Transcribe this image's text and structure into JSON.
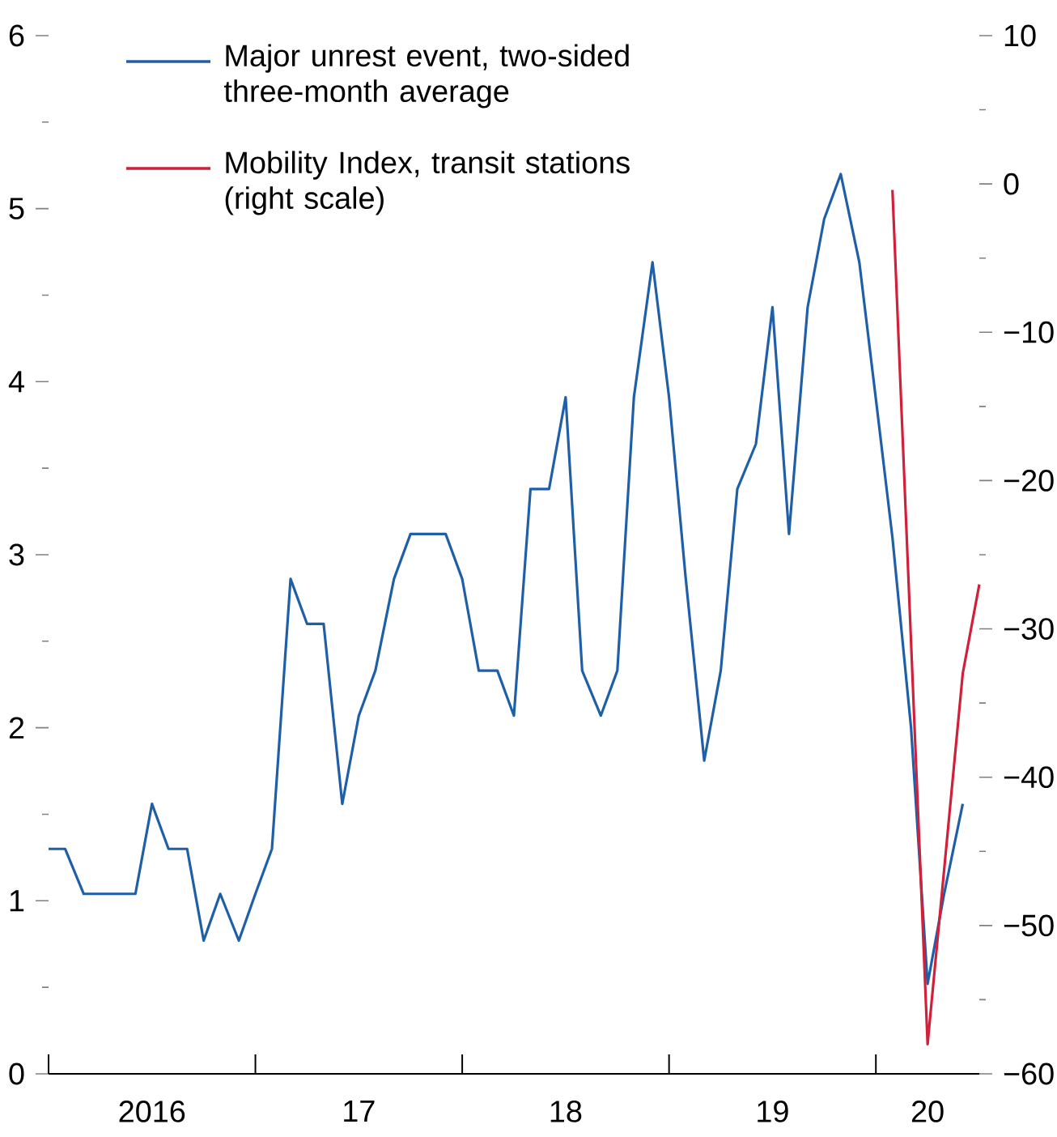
{
  "chart_data": {
    "type": "line",
    "x": [
      "2016-01",
      "2016-02",
      "2016-03",
      "2016-04",
      "2016-05",
      "2016-06",
      "2016-07",
      "2016-08",
      "2016-09",
      "2016-10",
      "2016-11",
      "2016-12",
      "2017-01",
      "2017-02",
      "2017-03",
      "2017-04",
      "2017-05",
      "2017-06",
      "2017-07",
      "2017-08",
      "2017-09",
      "2017-10",
      "2017-11",
      "2017-12",
      "2018-01",
      "2018-02",
      "2018-03",
      "2018-04",
      "2018-05",
      "2018-06",
      "2018-07",
      "2018-08",
      "2018-09",
      "2018-10",
      "2018-11",
      "2018-12",
      "2019-01",
      "2019-02",
      "2019-03",
      "2019-04",
      "2019-05",
      "2019-06",
      "2019-07",
      "2019-08",
      "2019-09",
      "2019-10",
      "2019-11",
      "2019-12",
      "2020-01",
      "2020-02",
      "2020-03",
      "2020-04",
      "2020-05",
      "2020-06"
    ],
    "series": [
      {
        "name": "Major unrest event, two-sided three-month average",
        "color": "#1f5fa8",
        "values": [
          1.3,
          1.3,
          1.04,
          1.04,
          1.04,
          1.04,
          1.56,
          1.3,
          1.3,
          0.77,
          1.04,
          0.77,
          1.04,
          1.3,
          2.86,
          2.6,
          2.6,
          1.56,
          2.07,
          2.33,
          2.86,
          3.12,
          3.12,
          3.12,
          2.86,
          2.33,
          2.33,
          2.07,
          3.38,
          3.38,
          3.91,
          2.33,
          2.07,
          2.33,
          3.91,
          4.69,
          3.91,
          2.87,
          1.81,
          2.33,
          3.38,
          3.64,
          4.43,
          3.12,
          4.43,
          4.94,
          5.2,
          4.69,
          3.9,
          3.1,
          2.0,
          0.52,
          1.04,
          1.56
        ]
      },
      {
        "name": "Mobility Index, transit stations (right scale)",
        "color": "#d0203a",
        "axis": "y2",
        "x": [
          "2020-02",
          "2020-04",
          "2020-06",
          "2020-07"
        ],
        "values": [
          -0.4,
          -58,
          -33,
          -27
        ]
      }
    ],
    "xlim": [
      "2016-01",
      "2020-07"
    ],
    "xticks": [
      {
        "value": "2016-01",
        "label": null
      },
      {
        "value": "2016-07",
        "label": "2016"
      },
      {
        "value": "2017-01",
        "label": null
      },
      {
        "value": "2017-07",
        "label": "17"
      },
      {
        "value": "2018-01",
        "label": null
      },
      {
        "value": "2018-07",
        "label": "18"
      },
      {
        "value": "2019-01",
        "label": null
      },
      {
        "value": "2019-07",
        "label": "19"
      },
      {
        "value": "2020-01",
        "label": null
      },
      {
        "value": "2020-04",
        "label": "20"
      }
    ],
    "ylim": [
      0,
      6
    ],
    "yticks": [
      0,
      {
        "value": 0.5,
        "label": null
      },
      1,
      {
        "value": 1.5,
        "label": null
      },
      2,
      {
        "value": 2.5,
        "label": null
      },
      3,
      {
        "value": 3.5,
        "label": null
      },
      4,
      {
        "value": 4.5,
        "label": null
      },
      5,
      {
        "value": 5.5,
        "label": null
      },
      6
    ],
    "y2lim": [
      -60,
      10
    ],
    "y2ticks": [
      {
        "value": -60,
        "label": "−60"
      },
      {
        "value": -55,
        "label": null
      },
      {
        "value": -50,
        "label": "−50"
      },
      {
        "value": -45,
        "label": null
      },
      {
        "value": -40,
        "label": "−40"
      },
      {
        "value": -35,
        "label": null
      },
      {
        "value": -30,
        "label": "−30"
      },
      {
        "value": -25,
        "label": null
      },
      {
        "value": -20,
        "label": "−20"
      },
      {
        "value": -15,
        "label": null
      },
      {
        "value": -10,
        "label": "−10"
      },
      {
        "value": -5,
        "label": null
      },
      {
        "value": 0,
        "label": "0"
      },
      {
        "value": 5,
        "label": null
      },
      {
        "value": 10,
        "label": "10"
      }
    ],
    "legend": "top left",
    "grid": false,
    "marker": "none",
    "line_style": "solid"
  }
}
